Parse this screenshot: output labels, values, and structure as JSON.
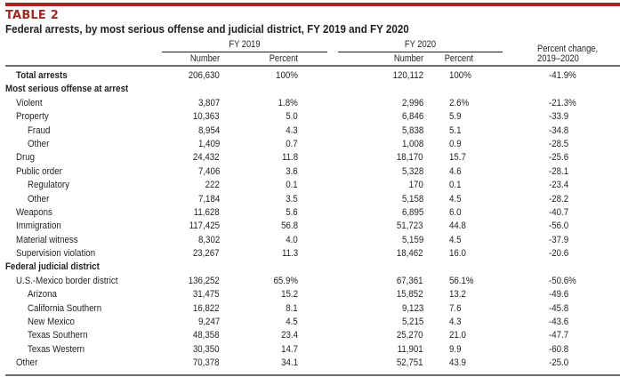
{
  "table_label": "TABLE 2",
  "title": "Federal arrests, by most serious offense and judicial district, FY 2019 and FY 2020",
  "headers": {
    "fy2019": "FY 2019",
    "fy2020": "FY 2020",
    "number": "Number",
    "percent": "Percent",
    "change_line1": "Percent change,",
    "change_line2": "2019–2020"
  },
  "rows": [
    {
      "label": "Total arrests",
      "type": "total",
      "num19": "206,630",
      "pct19": "100%",
      "num20": "120,112",
      "pct20": "100%",
      "chg": "-41.9%"
    },
    {
      "label": "Most serious offense at arrest",
      "type": "section",
      "num19": "",
      "pct19": "",
      "num20": "",
      "pct20": "",
      "chg": ""
    },
    {
      "label": "Violent",
      "type": "indent1",
      "num19": "3,807",
      "pct19": "1.8%",
      "num20": "2,996",
      "pct20": "2.6%",
      "chg": "-21.3%"
    },
    {
      "label": "Property",
      "type": "indent1",
      "num19": "10,363",
      "pct19": "5.0",
      "num20": "6,846",
      "pct20": "5.9",
      "chg": "-33.9"
    },
    {
      "label": "Fraud",
      "type": "indent2",
      "num19": "8,954",
      "pct19": "4.3",
      "num20": "5,838",
      "pct20": "5.1",
      "chg": "-34.8"
    },
    {
      "label": "Other",
      "type": "indent2",
      "num19": "1,409",
      "pct19": "0.7",
      "num20": "1,008",
      "pct20": "0.9",
      "chg": "-28.5"
    },
    {
      "label": "Drug",
      "type": "indent1",
      "num19": "24,432",
      "pct19": "11.8",
      "num20": "18,170",
      "pct20": "15.7",
      "chg": "-25.6"
    },
    {
      "label": "Public order",
      "type": "indent1",
      "num19": "7,406",
      "pct19": "3.6",
      "num20": "5,328",
      "pct20": "4.6",
      "chg": "-28.1"
    },
    {
      "label": "Regulatory",
      "type": "indent2",
      "num19": "222",
      "pct19": "0.1",
      "num20": "170",
      "pct20": "0.1",
      "chg": "-23.4"
    },
    {
      "label": "Other",
      "type": "indent2",
      "num19": "7,184",
      "pct19": "3.5",
      "num20": "5,158",
      "pct20": "4.5",
      "chg": "-28.2"
    },
    {
      "label": "Weapons",
      "type": "indent1",
      "num19": "11,628",
      "pct19": "5.6",
      "num20": "6,895",
      "pct20": "6.0",
      "chg": "-40.7"
    },
    {
      "label": "Immigration",
      "type": "indent1",
      "num19": "117,425",
      "pct19": "56.8",
      "num20": "51,723",
      "pct20": "44.8",
      "chg": "-56.0"
    },
    {
      "label": "Material witness",
      "type": "indent1",
      "num19": "8,302",
      "pct19": "4.0",
      "num20": "5,159",
      "pct20": "4.5",
      "chg": "-37.9"
    },
    {
      "label": "Supervision violation",
      "type": "indent1",
      "num19": "23,267",
      "pct19": "11.3",
      "num20": "18,462",
      "pct20": "16.0",
      "chg": "-20.6"
    },
    {
      "label": "Federal judicial district",
      "type": "section",
      "num19": "",
      "pct19": "",
      "num20": "",
      "pct20": "",
      "chg": ""
    },
    {
      "label": "U.S.-Mexico border district",
      "type": "indent1",
      "num19": "136,252",
      "pct19": "65.9%",
      "num20": "67,361",
      "pct20": "56.1%",
      "chg": "-50.6%"
    },
    {
      "label": "Arizona",
      "type": "indent2",
      "num19": "31,475",
      "pct19": "15.2",
      "num20": "15,852",
      "pct20": "13.2",
      "chg": "-49.6"
    },
    {
      "label": "California Southern",
      "type": "indent2",
      "num19": "16,822",
      "pct19": "8.1",
      "num20": "9,123",
      "pct20": "7.6",
      "chg": "-45.8"
    },
    {
      "label": "New Mexico",
      "type": "indent2",
      "num19": "9,247",
      "pct19": "4.5",
      "num20": "5,215",
      "pct20": "4.3",
      "chg": "-43.6"
    },
    {
      "label": "Texas Southern",
      "type": "indent2",
      "num19": "48,358",
      "pct19": "23.4",
      "num20": "25,270",
      "pct20": "21.0",
      "chg": "-47.7"
    },
    {
      "label": "Texas Western",
      "type": "indent2",
      "num19": "30,350",
      "pct19": "14.7",
      "num20": "11,901",
      "pct20": "9.9",
      "chg": "-60.8"
    },
    {
      "label": "Other",
      "type": "indent1",
      "num19": "70,378",
      "pct19": "34.1",
      "num20": "52,751",
      "pct20": "43.9",
      "chg": "-25.0"
    }
  ]
}
